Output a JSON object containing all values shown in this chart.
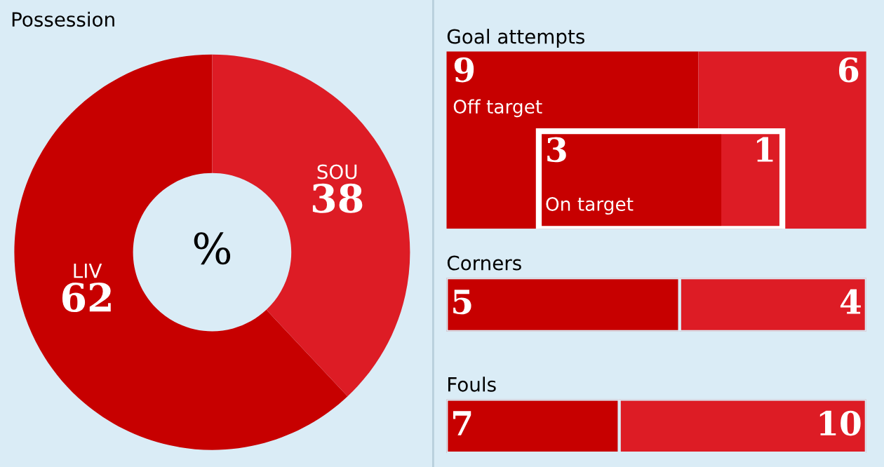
{
  "chart_data": [
    {
      "type": "donut",
      "title": "Possession",
      "categories": [
        "LIV",
        "SOU"
      ],
      "values": [
        62,
        38
      ],
      "colors": [
        "#c70000",
        "#dd1c25"
      ],
      "data_labels": true,
      "annotations": [
        "%"
      ]
    },
    {
      "type": "other",
      "title": "Goal attempts",
      "data_labels": true,
      "categories": [
        "Off target",
        "On target"
      ],
      "series": [
        {
          "color": "#c70000",
          "values": [
            9,
            3
          ]
        },
        {
          "color": "#dd1c25",
          "values": [
            6,
            1
          ]
        }
      ]
    },
    {
      "type": "bar",
      "title": "Corners",
      "orientation": "horizontal",
      "stacked": true,
      "categories": [
        null
      ],
      "data_labels": true,
      "series": [
        {
          "color": "#c70000",
          "values": [
            5
          ]
        },
        {
          "color": "#dd1c25",
          "values": [
            4
          ]
        }
      ]
    },
    {
      "type": "bar",
      "title": "Fouls",
      "orientation": "horizontal",
      "stacked": true,
      "categories": [
        null
      ],
      "data_labels": true,
      "series": [
        {
          "color": "#c70000",
          "values": [
            7
          ]
        },
        {
          "color": "#dd1c25",
          "values": [
            10
          ]
        }
      ]
    }
  ]
}
